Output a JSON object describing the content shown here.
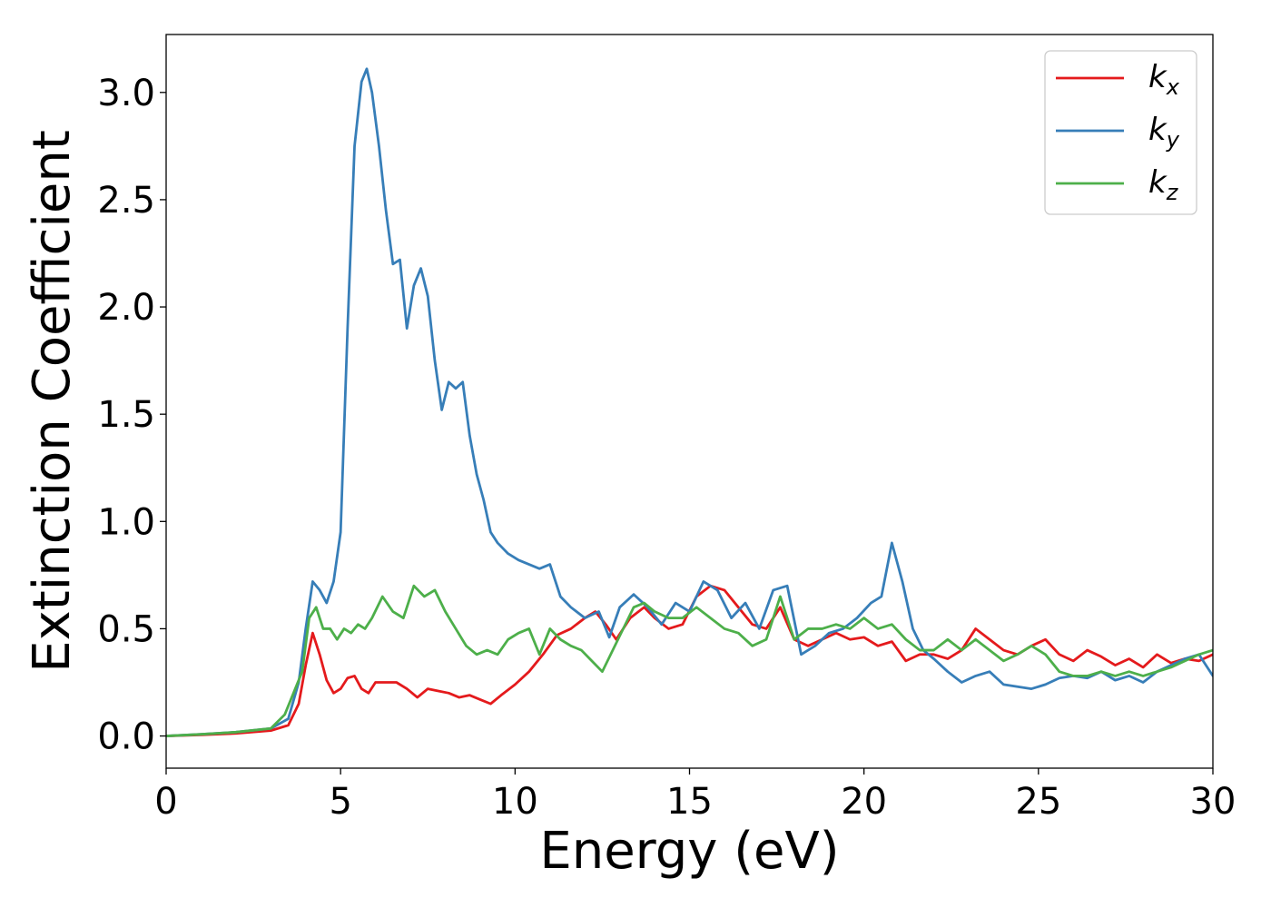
{
  "colors": {
    "background": "#ffffff",
    "axes": "#000000"
  },
  "chart_data": {
    "type": "line",
    "title": "",
    "xlabel": "Energy (eV)",
    "ylabel": "Extinction Coefficient",
    "xlim": [
      0,
      30
    ],
    "ylim": [
      -0.15,
      3.27
    ],
    "xticks": [
      0,
      5,
      10,
      15,
      20,
      25,
      30
    ],
    "xtick_labels": [
      "0",
      "5",
      "10",
      "15",
      "20",
      "25",
      "30"
    ],
    "yticks": [
      0.0,
      0.5,
      1.0,
      1.5,
      2.0,
      2.5,
      3.0
    ],
    "ytick_labels": [
      "0.0",
      "0.5",
      "1.0",
      "1.5",
      "2.0",
      "2.5",
      "3.0"
    ],
    "grid": false,
    "legend_position": "top-right",
    "series": [
      {
        "name": "k",
        "subscript": "x",
        "color": "#e41a1c",
        "x": [
          0,
          1,
          2,
          3,
          3.5,
          3.8,
          4.0,
          4.2,
          4.4,
          4.6,
          4.8,
          5.0,
          5.2,
          5.4,
          5.6,
          5.8,
          6.0,
          6.3,
          6.6,
          6.9,
          7.2,
          7.5,
          7.8,
          8.1,
          8.4,
          8.7,
          9.0,
          9.3,
          9.6,
          10.0,
          10.4,
          10.8,
          11.2,
          11.6,
          12.0,
          12.3,
          12.6,
          12.9,
          13.3,
          13.7,
          14.0,
          14.4,
          14.8,
          15.2,
          15.6,
          16.0,
          16.4,
          16.8,
          17.2,
          17.6,
          18.0,
          18.4,
          18.8,
          19.2,
          19.6,
          20.0,
          20.4,
          20.8,
          21.2,
          21.6,
          22.0,
          22.4,
          22.8,
          23.2,
          23.6,
          24.0,
          24.4,
          24.8,
          25.2,
          25.6,
          26.0,
          26.4,
          26.8,
          27.2,
          27.6,
          28.0,
          28.4,
          28.8,
          29.2,
          29.6,
          30.0
        ],
        "values": [
          0.0,
          0.005,
          0.012,
          0.025,
          0.05,
          0.15,
          0.33,
          0.48,
          0.38,
          0.26,
          0.2,
          0.22,
          0.27,
          0.28,
          0.22,
          0.2,
          0.25,
          0.25,
          0.25,
          0.22,
          0.18,
          0.22,
          0.21,
          0.2,
          0.18,
          0.19,
          0.17,
          0.15,
          0.19,
          0.24,
          0.3,
          0.38,
          0.47,
          0.5,
          0.55,
          0.58,
          0.52,
          0.45,
          0.55,
          0.6,
          0.55,
          0.5,
          0.52,
          0.65,
          0.7,
          0.68,
          0.6,
          0.52,
          0.5,
          0.6,
          0.45,
          0.42,
          0.45,
          0.48,
          0.45,
          0.46,
          0.42,
          0.44,
          0.35,
          0.38,
          0.38,
          0.36,
          0.4,
          0.5,
          0.45,
          0.4,
          0.38,
          0.42,
          0.45,
          0.38,
          0.35,
          0.4,
          0.37,
          0.33,
          0.36,
          0.32,
          0.38,
          0.34,
          0.36,
          0.35,
          0.38
        ]
      },
      {
        "name": "k",
        "subscript": "y",
        "color": "#377eb8",
        "x": [
          0,
          1,
          2,
          3,
          3.5,
          3.8,
          4.0,
          4.2,
          4.4,
          4.6,
          4.8,
          5.0,
          5.2,
          5.4,
          5.6,
          5.75,
          5.9,
          6.1,
          6.3,
          6.5,
          6.7,
          6.9,
          7.1,
          7.3,
          7.5,
          7.7,
          7.9,
          8.1,
          8.3,
          8.5,
          8.7,
          8.9,
          9.1,
          9.3,
          9.5,
          9.8,
          10.1,
          10.4,
          10.7,
          11.0,
          11.3,
          11.6,
          12.0,
          12.4,
          12.7,
          13.0,
          13.4,
          13.8,
          14.2,
          14.6,
          15.0,
          15.4,
          15.8,
          16.2,
          16.6,
          17.0,
          17.4,
          17.8,
          18.2,
          18.6,
          19.0,
          19.4,
          19.8,
          20.2,
          20.5,
          20.8,
          21.1,
          21.4,
          21.7,
          22.0,
          22.4,
          22.8,
          23.2,
          23.6,
          24.0,
          24.4,
          24.8,
          25.2,
          25.6,
          26.0,
          26.4,
          26.8,
          27.2,
          27.6,
          28.0,
          28.4,
          28.8,
          29.2,
          29.6,
          30.0
        ],
        "values": [
          0.0,
          0.008,
          0.018,
          0.035,
          0.08,
          0.25,
          0.5,
          0.72,
          0.68,
          0.62,
          0.72,
          0.95,
          1.9,
          2.75,
          3.05,
          3.11,
          3.0,
          2.75,
          2.45,
          2.2,
          2.22,
          1.9,
          2.1,
          2.18,
          2.05,
          1.75,
          1.52,
          1.65,
          1.62,
          1.65,
          1.4,
          1.22,
          1.1,
          0.95,
          0.9,
          0.85,
          0.82,
          0.8,
          0.78,
          0.8,
          0.65,
          0.6,
          0.55,
          0.58,
          0.46,
          0.6,
          0.66,
          0.6,
          0.52,
          0.62,
          0.58,
          0.72,
          0.68,
          0.55,
          0.62,
          0.5,
          0.68,
          0.7,
          0.38,
          0.42,
          0.48,
          0.5,
          0.55,
          0.62,
          0.65,
          0.9,
          0.72,
          0.5,
          0.4,
          0.36,
          0.3,
          0.25,
          0.28,
          0.3,
          0.24,
          0.23,
          0.22,
          0.24,
          0.27,
          0.28,
          0.27,
          0.3,
          0.26,
          0.28,
          0.25,
          0.3,
          0.33,
          0.36,
          0.38,
          0.28
        ]
      },
      {
        "name": "k",
        "subscript": "z",
        "color": "#4daf4a",
        "x": [
          0,
          1,
          2,
          3,
          3.4,
          3.7,
          3.9,
          4.1,
          4.3,
          4.5,
          4.7,
          4.9,
          5.1,
          5.3,
          5.5,
          5.7,
          5.9,
          6.2,
          6.5,
          6.8,
          7.1,
          7.4,
          7.7,
          8.0,
          8.3,
          8.6,
          8.9,
          9.2,
          9.5,
          9.8,
          10.1,
          10.4,
          10.7,
          11.0,
          11.3,
          11.6,
          11.9,
          12.2,
          12.5,
          12.8,
          13.1,
          13.4,
          13.7,
          14.0,
          14.4,
          14.8,
          15.2,
          15.6,
          16.0,
          16.4,
          16.8,
          17.2,
          17.6,
          18.0,
          18.4,
          18.8,
          19.2,
          19.6,
          20.0,
          20.4,
          20.8,
          21.2,
          21.6,
          22.0,
          22.4,
          22.8,
          23.2,
          23.6,
          24.0,
          24.4,
          24.8,
          25.2,
          25.6,
          26.0,
          26.4,
          26.8,
          27.2,
          27.6,
          28.0,
          28.4,
          28.8,
          29.2,
          29.6,
          30.0
        ],
        "values": [
          0.0,
          0.008,
          0.018,
          0.035,
          0.1,
          0.22,
          0.3,
          0.55,
          0.6,
          0.5,
          0.5,
          0.45,
          0.5,
          0.48,
          0.52,
          0.5,
          0.55,
          0.65,
          0.58,
          0.55,
          0.7,
          0.65,
          0.68,
          0.58,
          0.5,
          0.42,
          0.38,
          0.4,
          0.38,
          0.45,
          0.48,
          0.5,
          0.38,
          0.5,
          0.45,
          0.42,
          0.4,
          0.35,
          0.3,
          0.4,
          0.5,
          0.6,
          0.62,
          0.58,
          0.55,
          0.55,
          0.6,
          0.55,
          0.5,
          0.48,
          0.42,
          0.45,
          0.65,
          0.45,
          0.5,
          0.5,
          0.52,
          0.5,
          0.55,
          0.5,
          0.52,
          0.45,
          0.4,
          0.4,
          0.45,
          0.4,
          0.45,
          0.4,
          0.35,
          0.38,
          0.42,
          0.38,
          0.3,
          0.28,
          0.28,
          0.3,
          0.28,
          0.3,
          0.28,
          0.3,
          0.32,
          0.35,
          0.38,
          0.4
        ]
      }
    ]
  }
}
